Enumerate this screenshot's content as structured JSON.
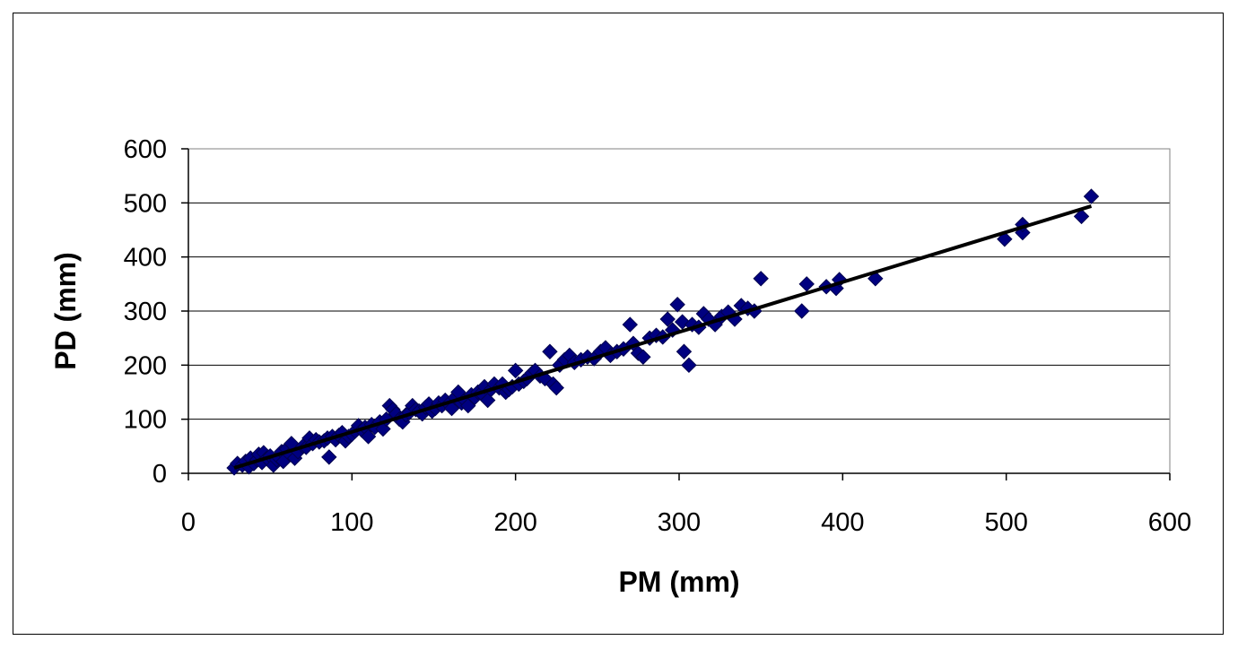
{
  "chart_data": {
    "type": "scatter",
    "title": "",
    "xlabel": "PM (mm)",
    "ylabel": "PD (mm)",
    "xlim": [
      0,
      600
    ],
    "ylim": [
      0,
      600
    ],
    "x_ticks": [
      "0",
      "100",
      "200",
      "300",
      "400",
      "500",
      "600"
    ],
    "y_ticks": [
      "0",
      "100",
      "200",
      "300",
      "400",
      "500",
      "600"
    ],
    "grid": "horizontal",
    "legend": "none",
    "colors": {
      "marker": "#000080",
      "trendline": "#000000",
      "gridline": "#000000",
      "plot_border": "#808080"
    },
    "trendline": {
      "x": [
        28,
        552
      ],
      "y": [
        10,
        494
      ]
    },
    "series": [
      {
        "points": [
          [
            28,
            10
          ],
          [
            30,
            18
          ],
          [
            33,
            15
          ],
          [
            35,
            22
          ],
          [
            37,
            12
          ],
          [
            38,
            28
          ],
          [
            40,
            18
          ],
          [
            42,
            25
          ],
          [
            43,
            35
          ],
          [
            45,
            20
          ],
          [
            46,
            38
          ],
          [
            48,
            28
          ],
          [
            50,
            32
          ],
          [
            52,
            15
          ],
          [
            54,
            25
          ],
          [
            55,
            30
          ],
          [
            57,
            40
          ],
          [
            58,
            22
          ],
          [
            60,
            45
          ],
          [
            62,
            35
          ],
          [
            63,
            55
          ],
          [
            65,
            28
          ],
          [
            67,
            40
          ],
          [
            70,
            50
          ],
          [
            72,
            48
          ],
          [
            74,
            65
          ],
          [
            76,
            55
          ],
          [
            78,
            62
          ],
          [
            80,
            58
          ],
          [
            83,
            60
          ],
          [
            85,
            65
          ],
          [
            86,
            30
          ],
          [
            88,
            68
          ],
          [
            90,
            62
          ],
          [
            92,
            70
          ],
          [
            94,
            75
          ],
          [
            96,
            60
          ],
          [
            98,
            68
          ],
          [
            100,
            72
          ],
          [
            102,
            78
          ],
          [
            104,
            88
          ],
          [
            106,
            80
          ],
          [
            108,
            85
          ],
          [
            110,
            68
          ],
          [
            112,
            90
          ],
          [
            114,
            85
          ],
          [
            117,
            95
          ],
          [
            119,
            82
          ],
          [
            121,
            100
          ],
          [
            123,
            125
          ],
          [
            125,
            118
          ],
          [
            127,
            110
          ],
          [
            129,
            100
          ],
          [
            131,
            95
          ],
          [
            133,
            108
          ],
          [
            135,
            112
          ],
          [
            137,
            125
          ],
          [
            139,
            118
          ],
          [
            141,
            115
          ],
          [
            143,
            110
          ],
          [
            145,
            122
          ],
          [
            147,
            128
          ],
          [
            149,
            115
          ],
          [
            151,
            120
          ],
          [
            153,
            130
          ],
          [
            155,
            125
          ],
          [
            157,
            135
          ],
          [
            159,
            128
          ],
          [
            161,
            120
          ],
          [
            163,
            140
          ],
          [
            165,
            150
          ],
          [
            167,
            130
          ],
          [
            169,
            135
          ],
          [
            171,
            125
          ],
          [
            173,
            145
          ],
          [
            175,
            140
          ],
          [
            177,
            150
          ],
          [
            179,
            148
          ],
          [
            181,
            160
          ],
          [
            183,
            135
          ],
          [
            185,
            155
          ],
          [
            187,
            165
          ],
          [
            190,
            158
          ],
          [
            192,
            165
          ],
          [
            194,
            150
          ],
          [
            196,
            155
          ],
          [
            198,
            160
          ],
          [
            200,
            190
          ],
          [
            202,
            165
          ],
          [
            205,
            170
          ],
          [
            207,
            175
          ],
          [
            210,
            185
          ],
          [
            212,
            190
          ],
          [
            215,
            180
          ],
          [
            218,
            175
          ],
          [
            221,
            225
          ],
          [
            223,
            165
          ],
          [
            225,
            158
          ],
          [
            227,
            200
          ],
          [
            230,
            210
          ],
          [
            233,
            218
          ],
          [
            236,
            205
          ],
          [
            240,
            210
          ],
          [
            244,
            215
          ],
          [
            248,
            212
          ],
          [
            252,
            225
          ],
          [
            255,
            232
          ],
          [
            258,
            218
          ],
          [
            262,
            225
          ],
          [
            266,
            230
          ],
          [
            270,
            275
          ],
          [
            272,
            240
          ],
          [
            275,
            222
          ],
          [
            278,
            215
          ],
          [
            282,
            250
          ],
          [
            286,
            255
          ],
          [
            290,
            252
          ],
          [
            293,
            285
          ],
          [
            296,
            265
          ],
          [
            299,
            312
          ],
          [
            302,
            280
          ],
          [
            303,
            225
          ],
          [
            306,
            200
          ],
          [
            308,
            275
          ],
          [
            312,
            270
          ],
          [
            315,
            295
          ],
          [
            318,
            285
          ],
          [
            322,
            275
          ],
          [
            326,
            290
          ],
          [
            330,
            298
          ],
          [
            334,
            285
          ],
          [
            338,
            310
          ],
          [
            342,
            305
          ],
          [
            346,
            300
          ],
          [
            350,
            360
          ],
          [
            375,
            300
          ],
          [
            378,
            350
          ],
          [
            390,
            345
          ],
          [
            396,
            342
          ],
          [
            398,
            358
          ],
          [
            420,
            360
          ],
          [
            499,
            433
          ],
          [
            510,
            445
          ],
          [
            510,
            460
          ],
          [
            546,
            475
          ],
          [
            552,
            512
          ]
        ]
      }
    ]
  }
}
